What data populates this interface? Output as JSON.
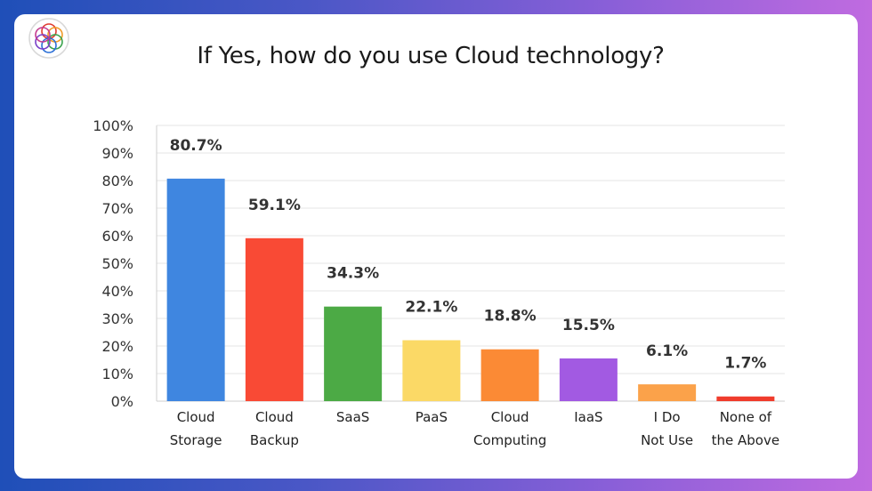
{
  "chart_data": {
    "type": "bar",
    "title": "If Yes, how do you use Cloud technology?",
    "categories": [
      [
        "Cloud",
        "Storage"
      ],
      [
        "Cloud",
        "Backup"
      ],
      [
        "SaaS"
      ],
      [
        "PaaS"
      ],
      [
        "Cloud",
        "Computing"
      ],
      [
        "IaaS"
      ],
      [
        "I Do",
        "Not Use"
      ],
      [
        "None of",
        "the Above"
      ]
    ],
    "values": [
      80.7,
      59.1,
      34.3,
      22.1,
      18.8,
      15.5,
      6.1,
      1.7
    ],
    "data_labels": [
      "80.7%",
      "59.1%",
      "34.3%",
      "22.1%",
      "18.8%",
      "15.5%",
      "6.1%",
      "1.7%"
    ],
    "colors": [
      "#3f86e0",
      "#f94a35",
      "#4caa45",
      "#fbd966",
      "#fb8a35",
      "#a25ae2",
      "#fba24a",
      "#f03c2c"
    ],
    "yticks": [
      "0%",
      "10%",
      "20%",
      "30%",
      "40%",
      "50%",
      "60%",
      "70%",
      "80%",
      "90%",
      "100%"
    ],
    "ylim": [
      0,
      100
    ],
    "grid": true,
    "legend": "none",
    "xlabel": "",
    "ylabel": ""
  },
  "logo": {
    "icon": "circular-mandala-logo-icon"
  }
}
